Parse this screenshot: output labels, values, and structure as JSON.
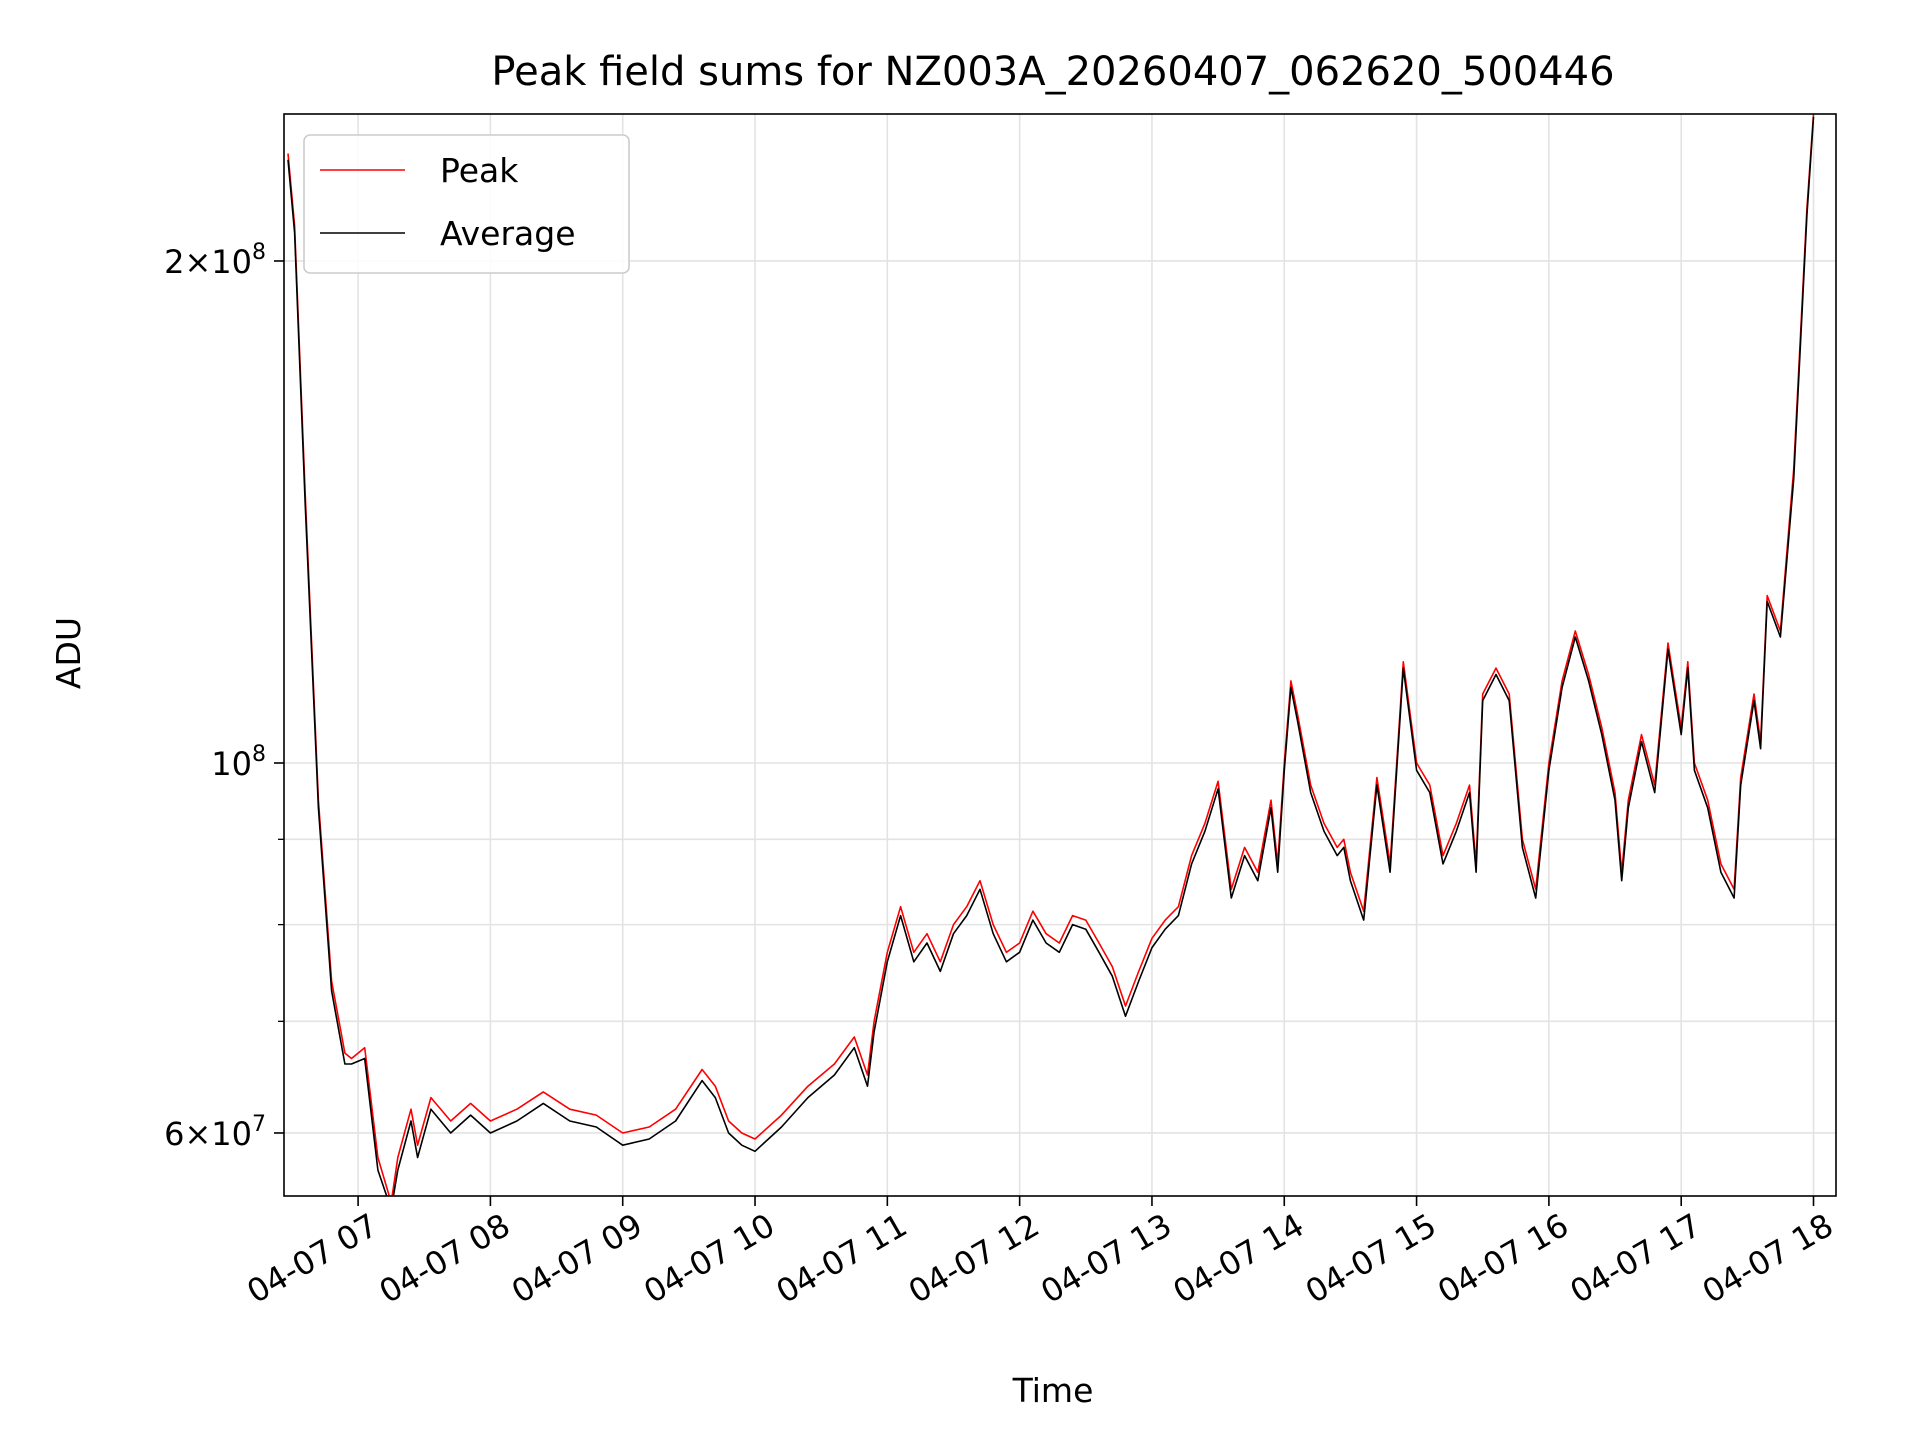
{
  "chart_data": {
    "type": "line",
    "title": "Peak field sums for NZ003A_20260407_062620_500446",
    "xlabel": "Time",
    "ylabel": "ADU",
    "x_tick_labels": [
      "04-07 07",
      "04-07 08",
      "04-07 09",
      "04-07 10",
      "04-07 11",
      "04-07 12",
      "04-07 13",
      "04-07 14",
      "04-07 15",
      "04-07 16",
      "04-07 17",
      "04-07 18"
    ],
    "x_tick_hours": [
      7,
      8,
      9,
      10,
      11,
      12,
      13,
      14,
      15,
      16,
      17,
      18
    ],
    "xlim_hours": [
      6.44,
      18.17
    ],
    "y_scale": "log",
    "ylim": [
      55000000,
      245000000
    ],
    "y_major_ticks": [
      {
        "value": 60000000,
        "mantissa": "6",
        "base": "10",
        "exp": "7"
      },
      {
        "value": 100000000,
        "mantissa": "",
        "base": "10",
        "exp": "8"
      },
      {
        "value": 200000000,
        "mantissa": "2",
        "base": "10",
        "exp": "8"
      }
    ],
    "y_minor_ticks": [
      70000000,
      80000000,
      90000000
    ],
    "grid": true,
    "legend_position": "upper-left",
    "time_unit": "hours",
    "x_hours": [
      6.47,
      6.52,
      6.6,
      6.7,
      6.8,
      6.9,
      6.95,
      7.05,
      7.15,
      7.25,
      7.3,
      7.4,
      7.45,
      7.55,
      7.7,
      7.85,
      8.0,
      8.2,
      8.4,
      8.6,
      8.8,
      9.0,
      9.2,
      9.4,
      9.6,
      9.7,
      9.8,
      9.9,
      10.0,
      10.2,
      10.4,
      10.6,
      10.75,
      10.85,
      10.9,
      11.0,
      11.1,
      11.2,
      11.3,
      11.4,
      11.5,
      11.6,
      11.7,
      11.8,
      11.9,
      12.0,
      12.1,
      12.2,
      12.3,
      12.4,
      12.5,
      12.6,
      12.7,
      12.8,
      12.9,
      13.0,
      13.1,
      13.2,
      13.3,
      13.4,
      13.5,
      13.6,
      13.7,
      13.8,
      13.9,
      13.95,
      14.0,
      14.05,
      14.1,
      14.2,
      14.3,
      14.4,
      14.45,
      14.5,
      14.6,
      14.7,
      14.8,
      14.9,
      15.0,
      15.1,
      15.2,
      15.3,
      15.4,
      15.45,
      15.5,
      15.6,
      15.7,
      15.8,
      15.9,
      16.0,
      16.1,
      16.2,
      16.3,
      16.4,
      16.5,
      16.55,
      16.6,
      16.7,
      16.8,
      16.9,
      17.0,
      17.05,
      17.1,
      17.2,
      17.3,
      17.4,
      17.45,
      17.55,
      17.6,
      17.65,
      17.75,
      17.85,
      17.95,
      18.0
    ],
    "series": [
      {
        "name": "Peak",
        "color": "#ff0000",
        "values": [
          232000000,
          210000000,
          145000000,
          95000000,
          74000000,
          67000000,
          66500000,
          67500000,
          58000000,
          54500000,
          58000000,
          62000000,
          59000000,
          63000000,
          61000000,
          62500000,
          61000000,
          62000000,
          63500000,
          62000000,
          61500000,
          60000000,
          60500000,
          62000000,
          65500000,
          64000000,
          61000000,
          60000000,
          59500000,
          61500000,
          64000000,
          66000000,
          68500000,
          65000000,
          70000000,
          77000000,
          82000000,
          77000000,
          79000000,
          76000000,
          80000000,
          82000000,
          85000000,
          80000000,
          77000000,
          78000000,
          81500000,
          79000000,
          78000000,
          81000000,
          80500000,
          78000000,
          75500000,
          71500000,
          75000000,
          78500000,
          80500000,
          82000000,
          88000000,
          92000000,
          97500000,
          84000000,
          89000000,
          86000000,
          95000000,
          87000000,
          100000000,
          112000000,
          107000000,
          97000000,
          92000000,
          89000000,
          90000000,
          86000000,
          81500000,
          98000000,
          87000000,
          115000000,
          100000000,
          97000000,
          88000000,
          92000000,
          97000000,
          87000000,
          110000000,
          114000000,
          110000000,
          90000000,
          84000000,
          100000000,
          112000000,
          120000000,
          113000000,
          105000000,
          96000000,
          86000000,
          95000000,
          104000000,
          97000000,
          118000000,
          105000000,
          115000000,
          100000000,
          95000000,
          87000000,
          84000000,
          98000000,
          110000000,
          103000000,
          126000000,
          120000000,
          150000000,
          215000000,
          245000000
        ]
      },
      {
        "name": "Average",
        "color": "#000000",
        "values": [
          230000000,
          208000000,
          143000000,
          94000000,
          73000000,
          66000000,
          66000000,
          66500000,
          57000000,
          54000000,
          57000000,
          61000000,
          58000000,
          62000000,
          60000000,
          61500000,
          60000000,
          61000000,
          62500000,
          61000000,
          60500000,
          59000000,
          59500000,
          61000000,
          64500000,
          63000000,
          60000000,
          59000000,
          58500000,
          60500000,
          63000000,
          65000000,
          67500000,
          64000000,
          69000000,
          76000000,
          81000000,
          76000000,
          78000000,
          75000000,
          79000000,
          81000000,
          84000000,
          79000000,
          76000000,
          77000000,
          80500000,
          78000000,
          77000000,
          80000000,
          79500000,
          77000000,
          74500000,
          70500000,
          74000000,
          77500000,
          79500000,
          81000000,
          87000000,
          91000000,
          96500000,
          83000000,
          88000000,
          85000000,
          94000000,
          86000000,
          99000000,
          111000000,
          106000000,
          96000000,
          91000000,
          88000000,
          89000000,
          85000000,
          80500000,
          97000000,
          86000000,
          114000000,
          99000000,
          96000000,
          87000000,
          91000000,
          96000000,
          86000000,
          109000000,
          113000000,
          109000000,
          89000000,
          83000000,
          99000000,
          111000000,
          119000000,
          112000000,
          104000000,
          95000000,
          85000000,
          94000000,
          103000000,
          96000000,
          117000000,
          104000000,
          114000000,
          99000000,
          94000000,
          86000000,
          83000000,
          97000000,
          109000000,
          102000000,
          125000000,
          119000000,
          148000000,
          213000000,
          244000000
        ]
      }
    ]
  }
}
